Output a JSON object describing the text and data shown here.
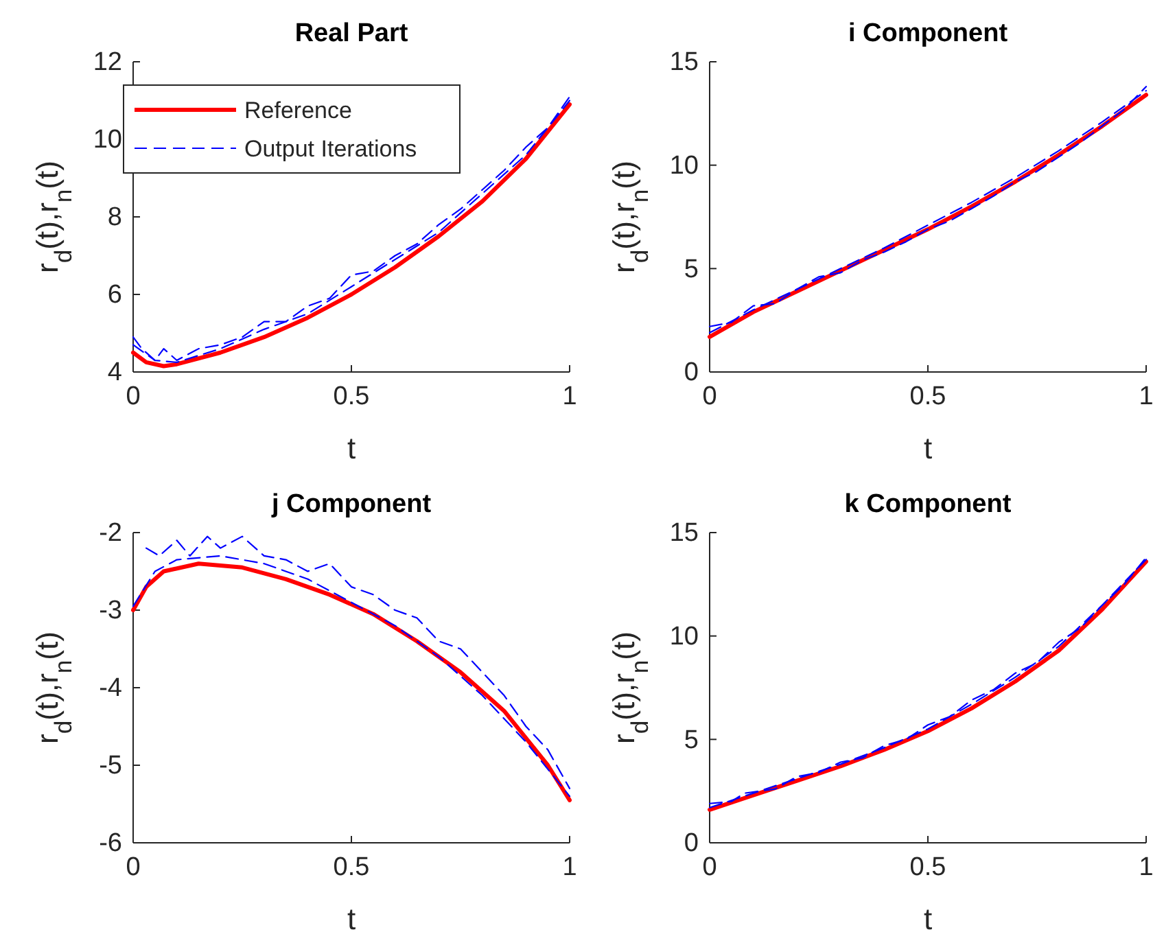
{
  "chart_data": [
    {
      "type": "line",
      "title": "Real Part",
      "xlabel": "t",
      "ylabel": "r$_{d}$(t),r$_{n}$(t)",
      "xlim": [
        0,
        1
      ],
      "xticks": [
        0,
        0.5,
        1
      ],
      "ylim": [
        4,
        12
      ],
      "yticks": [
        4,
        6,
        8,
        10,
        12
      ],
      "legend": "top",
      "series": [
        {
          "name": "Reference",
          "color": "#ff0000",
          "line_style": "solid",
          "x": [
            0,
            0.03,
            0.07,
            0.1,
            0.2,
            0.3,
            0.4,
            0.5,
            0.6,
            0.7,
            0.8,
            0.9,
            1
          ],
          "values": [
            4.5,
            4.25,
            4.15,
            4.2,
            4.5,
            4.9,
            5.4,
            6.0,
            6.7,
            7.5,
            8.4,
            9.5,
            10.9
          ]
        },
        {
          "name": "Output Iterations",
          "color": "#0000ff",
          "line_style": "dashed",
          "x": [
            0,
            0.02,
            0.05,
            0.07,
            0.1,
            0.15,
            0.2,
            0.25,
            0.3,
            0.35,
            0.4,
            0.45,
            0.5,
            0.55,
            0.6,
            0.65,
            0.7,
            0.75,
            0.8,
            0.85,
            0.9,
            0.95,
            1
          ],
          "values": [
            4.9,
            4.6,
            4.3,
            4.6,
            4.3,
            4.6,
            4.7,
            4.9,
            5.3,
            5.3,
            5.7,
            5.9,
            6.5,
            6.6,
            7.0,
            7.3,
            7.8,
            8.2,
            8.7,
            9.2,
            9.8,
            10.3,
            11.1
          ]
        },
        {
          "color": "#0000ff",
          "line_style": "dashed",
          "x": [
            0,
            0.05,
            0.1,
            0.2,
            0.3,
            0.4,
            0.5,
            0.6,
            0.7,
            0.8,
            0.9,
            1
          ],
          "values": [
            4.7,
            4.3,
            4.25,
            4.6,
            5.1,
            5.5,
            6.2,
            6.9,
            7.6,
            8.6,
            9.6,
            11.0
          ]
        }
      ]
    },
    {
      "type": "line",
      "title": "i Component",
      "xlabel": "t",
      "ylabel": "r$_{d}$(t),r$_{n}$(t)",
      "xlim": [
        0,
        1
      ],
      "xticks": [
        0,
        0.5,
        1
      ],
      "ylim": [
        0,
        15
      ],
      "yticks": [
        0,
        5,
        10,
        15
      ],
      "series": [
        {
          "color": "#ff0000",
          "line_style": "solid",
          "x": [
            0,
            0.1,
            0.2,
            0.3,
            0.4,
            0.5,
            0.6,
            0.7,
            0.8,
            0.9,
            1
          ],
          "values": [
            1.7,
            2.9,
            3.9,
            4.9,
            5.9,
            6.9,
            8.0,
            9.2,
            10.5,
            11.9,
            13.4
          ]
        },
        {
          "color": "#0000ff",
          "line_style": "dashed",
          "x": [
            0,
            0.05,
            0.1,
            0.15,
            0.2,
            0.25,
            0.3,
            0.35,
            0.4,
            0.45,
            0.5,
            0.55,
            0.6,
            0.65,
            0.7,
            0.75,
            0.8,
            0.85,
            0.9,
            0.95,
            1
          ],
          "values": [
            2.2,
            2.4,
            3.2,
            3.3,
            4.0,
            4.6,
            4.8,
            5.4,
            5.8,
            6.3,
            6.9,
            7.3,
            7.9,
            8.5,
            9.2,
            9.7,
            10.4,
            11.1,
            11.9,
            12.7,
            13.8
          ]
        },
        {
          "color": "#0000ff",
          "line_style": "dashed",
          "x": [
            0,
            0.1,
            0.2,
            0.3,
            0.4,
            0.5,
            0.6,
            0.7,
            0.8,
            0.9,
            1
          ],
          "values": [
            1.9,
            3.0,
            4.0,
            5.0,
            6.0,
            7.1,
            8.2,
            9.4,
            10.7,
            12.1,
            13.6
          ]
        }
      ]
    },
    {
      "type": "line",
      "title": "j Component",
      "xlabel": "t",
      "ylabel": "r$_{d}$(t),r$_{n}$(t)",
      "xlim": [
        0,
        1
      ],
      "xticks": [
        0,
        0.5,
        1
      ],
      "ylim": [
        -6,
        -2
      ],
      "yticks": [
        -6,
        -5,
        -4,
        -3,
        -2
      ],
      "series": [
        {
          "color": "#ff0000",
          "line_style": "solid",
          "x": [
            0,
            0.03,
            0.07,
            0.15,
            0.25,
            0.35,
            0.45,
            0.55,
            0.65,
            0.75,
            0.85,
            0.95,
            1
          ],
          "values": [
            -3.0,
            -2.7,
            -2.5,
            -2.4,
            -2.45,
            -2.6,
            -2.8,
            -3.05,
            -3.4,
            -3.8,
            -4.3,
            -5.0,
            -5.45
          ]
        },
        {
          "color": "#0000ff",
          "line_style": "dashed",
          "x": [
            0.03,
            0.06,
            0.1,
            0.13,
            0.17,
            0.2,
            0.25,
            0.3,
            0.35,
            0.4,
            0.45,
            0.5,
            0.55,
            0.6,
            0.65,
            0.7,
            0.75,
            0.8,
            0.85,
            0.9,
            0.95,
            1
          ],
          "values": [
            -2.2,
            -2.3,
            -2.1,
            -2.3,
            -2.05,
            -2.2,
            -2.05,
            -2.3,
            -2.35,
            -2.5,
            -2.4,
            -2.7,
            -2.8,
            -3.0,
            -3.1,
            -3.4,
            -3.5,
            -3.8,
            -4.1,
            -4.5,
            -4.8,
            -5.3
          ]
        },
        {
          "color": "#0000ff",
          "line_style": "dashed",
          "x": [
            0,
            0.05,
            0.1,
            0.2,
            0.3,
            0.4,
            0.5,
            0.6,
            0.7,
            0.8,
            0.9,
            1
          ],
          "values": [
            -2.95,
            -2.5,
            -2.35,
            -2.3,
            -2.4,
            -2.6,
            -2.9,
            -3.2,
            -3.6,
            -4.1,
            -4.7,
            -5.4
          ]
        }
      ]
    },
    {
      "type": "line",
      "title": "k Component",
      "xlabel": "t",
      "ylabel": "r$_{d}$(t),r$_{n}$(t)",
      "xlim": [
        0,
        1
      ],
      "xticks": [
        0,
        0.5,
        1
      ],
      "ylim": [
        0,
        15
      ],
      "yticks": [
        0,
        5,
        10,
        15
      ],
      "series": [
        {
          "color": "#ff0000",
          "line_style": "solid",
          "x": [
            0,
            0.1,
            0.2,
            0.3,
            0.4,
            0.5,
            0.6,
            0.7,
            0.8,
            0.9,
            1
          ],
          "values": [
            1.6,
            2.3,
            3.0,
            3.7,
            4.5,
            5.4,
            6.5,
            7.8,
            9.3,
            11.3,
            13.6
          ]
        },
        {
          "color": "#0000ff",
          "line_style": "dashed",
          "x": [
            0,
            0.05,
            0.08,
            0.15,
            0.2,
            0.25,
            0.3,
            0.35,
            0.4,
            0.45,
            0.5,
            0.55,
            0.6,
            0.65,
            0.7,
            0.75,
            0.8,
            0.85,
            0.9,
            0.95,
            1
          ],
          "values": [
            1.9,
            2.0,
            2.4,
            2.6,
            3.2,
            3.4,
            3.9,
            4.1,
            4.7,
            5.0,
            5.7,
            6.1,
            6.9,
            7.4,
            8.2,
            8.7,
            9.7,
            10.4,
            11.5,
            12.5,
            13.8
          ]
        },
        {
          "color": "#0000ff",
          "line_style": "dashed",
          "x": [
            0,
            0.1,
            0.2,
            0.3,
            0.4,
            0.5,
            0.6,
            0.7,
            0.8,
            0.9,
            1
          ],
          "values": [
            1.7,
            2.4,
            3.1,
            3.8,
            4.6,
            5.5,
            6.7,
            8.0,
            9.5,
            11.5,
            13.7
          ]
        }
      ]
    }
  ]
}
